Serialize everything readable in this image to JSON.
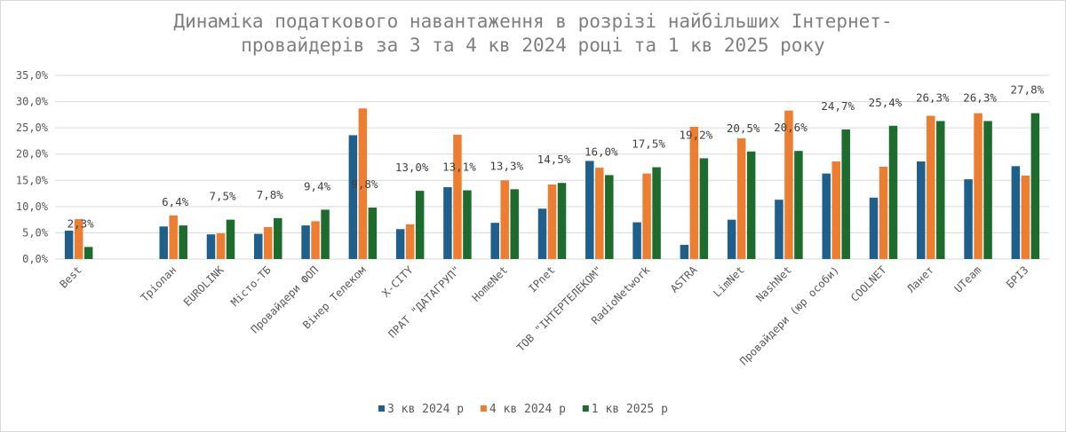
{
  "chart_data": {
    "type": "bar",
    "title_lines": [
      "Динаміка податкового навантаження в розрізі найбільших Інтернет-",
      "провайдерів за 3 та 4 кв 2024 році та 1 кв 2025 року"
    ],
    "ylim": [
      0,
      35
    ],
    "yticks": [
      "0,0%",
      "5,0%",
      "10,0%",
      "15,0%",
      "20,0%",
      "25,0%",
      "30,0%",
      "35,0%"
    ],
    "grid": true,
    "legend_position": "bottom",
    "categories": [
      "Best",
      "",
      "Тріолан",
      "EUROLINK",
      "Місто-ТБ",
      "Провайдери ФОП",
      "Вінер Телеком",
      "X-CITY",
      "ПРАТ \"ДАТАГРУП\"",
      "HomeNet",
      "IPnet",
      "ТОВ \"ІНТЕРТЕЛЕКОМ\"",
      "RadioNetwork",
      "ASTRA",
      "LimNet",
      "NashNet",
      "Провайдери (юр особи)",
      "COOLNET",
      "Ланет",
      "UTeam",
      "БРІЗ"
    ],
    "series": [
      {
        "name": "3 кв 2024 р",
        "color": "#1f5f8b",
        "values": [
          5.4,
          null,
          6.2,
          4.7,
          4.8,
          6.4,
          23.6,
          5.7,
          13.7,
          6.9,
          9.6,
          18.7,
          7.0,
          2.7,
          7.5,
          11.3,
          16.3,
          11.7,
          18.6,
          15.2,
          17.7
        ]
      },
      {
        "name": "4 кв 2024 р",
        "color": "#ed7d31",
        "values": [
          7.6,
          null,
          8.3,
          4.9,
          6.1,
          7.2,
          28.7,
          6.6,
          23.7,
          15.0,
          14.2,
          17.4,
          16.3,
          25.2,
          23.0,
          28.3,
          18.6,
          17.6,
          27.3,
          27.8,
          15.9
        ]
      },
      {
        "name": "1 кв 2025 р",
        "color": "#1e6b2e",
        "values": [
          2.3,
          null,
          6.4,
          7.5,
          7.8,
          9.4,
          9.8,
          13.0,
          13.1,
          13.3,
          14.5,
          16.0,
          17.5,
          19.2,
          20.5,
          20.6,
          24.7,
          25.4,
          26.3,
          26.3,
          27.8
        ]
      }
    ],
    "data_labels_series3": [
      "2,3%",
      "",
      "6,4%",
      "7,5%",
      "7,8%",
      "9,4%",
      "9,8%",
      "13,0%",
      "13,1%",
      "13,3%",
      "14,5%",
      "16,0%",
      "17,5%",
      "19,2%",
      "20,5%",
      "20,6%",
      "24,7%",
      "25,4%",
      "26,3%",
      "26,3%",
      "27,8%"
    ]
  }
}
